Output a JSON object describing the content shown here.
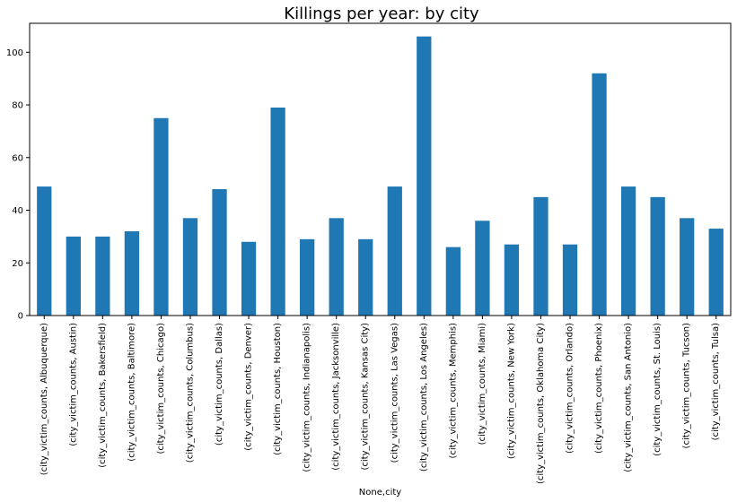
{
  "chart_data": {
    "type": "bar",
    "title": "Killings per year: by city",
    "xlabel": "None,city",
    "ylabel": "",
    "ylim": [
      0,
      111
    ],
    "yticks": [
      0,
      20,
      40,
      60,
      80,
      100
    ],
    "grid": false,
    "bar_color": "#1f77b4",
    "categories": [
      "(city_victim_counts, Albuquerque)",
      "(city_victim_counts, Austin)",
      "(city_victim_counts, Bakersfield)",
      "(city_victim_counts, Baltimore)",
      "(city_victim_counts, Chicago)",
      "(city_victim_counts, Columbus)",
      "(city_victim_counts, Dallas)",
      "(city_victim_counts, Denver)",
      "(city_victim_counts, Houston)",
      "(city_victim_counts, Indianapolis)",
      "(city_victim_counts, Jacksonville)",
      "(city_victim_counts, Kansas City)",
      "(city_victim_counts, Las Vegas)",
      "(city_victim_counts, Los Angeles)",
      "(city_victim_counts, Memphis)",
      "(city_victim_counts, Miami)",
      "(city_victim_counts, New York)",
      "(city_victim_counts, Oklahoma City)",
      "(city_victim_counts, Orlando)",
      "(city_victim_counts, Phoenix)",
      "(city_victim_counts, San Antonio)",
      "(city_victim_counts, St. Louis)",
      "(city_victim_counts, Tucson)",
      "(city_victim_counts, Tulsa)"
    ],
    "values": [
      49,
      30,
      30,
      32,
      75,
      37,
      48,
      28,
      79,
      29,
      37,
      29,
      49,
      106,
      26,
      36,
      27,
      45,
      27,
      92,
      49,
      45,
      37,
      33
    ]
  }
}
